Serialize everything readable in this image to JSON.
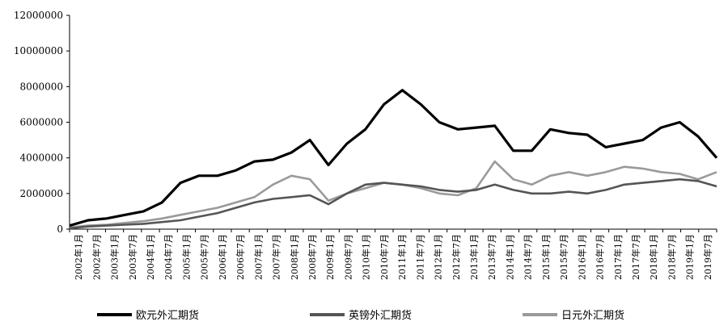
{
  "chart_data": {
    "type": "line",
    "title": "",
    "xlabel": "",
    "ylabel": "",
    "ylim": [
      0,
      12000000
    ],
    "yticks": [
      "0",
      "2000000",
      "4000000",
      "6000000",
      "8000000",
      "10000000",
      "12000000"
    ],
    "x_tick_labels": [
      "2002年1月",
      "2002年7月",
      "2003年1月",
      "2003年7月",
      "2004年1月",
      "2004年7月",
      "2005年1月",
      "2005年7月",
      "2006年1月",
      "2006年7月",
      "2007年1月",
      "2007年7月",
      "2008年1月",
      "2008年7月",
      "2009年1月",
      "2009年7月",
      "2010年1月",
      "2010年7月",
      "2011年1月",
      "2011年7月",
      "2012年1月",
      "2012年7月",
      "2013年1月",
      "2013年7月",
      "2014年1月",
      "2014年7月",
      "2015年1月",
      "2015年7月",
      "2016年1月",
      "2016年7月",
      "2017年1月",
      "2017年7月",
      "2018年1月",
      "2018年7月",
      "2019年1月",
      "2019年7月"
    ],
    "legend_position": "bottom",
    "grid": false,
    "x_anchors": [
      "2002-01",
      "2002-07",
      "2003-01",
      "2003-07",
      "2004-01",
      "2004-07",
      "2005-01",
      "2005-07",
      "2006-01",
      "2006-07",
      "2007-01",
      "2007-07",
      "2008-01",
      "2008-07",
      "2009-01",
      "2009-07",
      "2010-01",
      "2010-07",
      "2011-01",
      "2011-07",
      "2012-01",
      "2012-07",
      "2013-01",
      "2013-07",
      "2014-01",
      "2014-07",
      "2015-01",
      "2015-07",
      "2016-01",
      "2016-07",
      "2017-01",
      "2017-07",
      "2018-01",
      "2018-07",
      "2019-01",
      "2019-07"
    ],
    "series": [
      {
        "name": "欧元外汇期货",
        "color": "#000000",
        "width": 3.2,
        "values": [
          200000,
          500000,
          600000,
          800000,
          1000000,
          1500000,
          2600000,
          3000000,
          3000000,
          3300000,
          3800000,
          3900000,
          4300000,
          5000000,
          3600000,
          4800000,
          5600000,
          7000000,
          7800000,
          7000000,
          6000000,
          5600000,
          5700000,
          5800000,
          4400000,
          4400000,
          5600000,
          5400000,
          5300000,
          4600000,
          4800000,
          5000000,
          5700000,
          6000000,
          5200000,
          4000000
        ]
      },
      {
        "name": "英镑外汇期货",
        "color": "#555555",
        "width": 2.6,
        "values": [
          50000,
          150000,
          200000,
          250000,
          300000,
          400000,
          500000,
          700000,
          900000,
          1200000,
          1500000,
          1700000,
          1800000,
          1900000,
          1400000,
          2000000,
          2500000,
          2600000,
          2500000,
          2400000,
          2200000,
          2100000,
          2200000,
          2500000,
          2200000,
          2000000,
          2000000,
          2100000,
          2000000,
          2200000,
          2500000,
          2600000,
          2700000,
          2800000,
          2700000,
          2400000
        ]
      },
      {
        "name": "日元外汇期货",
        "color": "#9a9a9a",
        "width": 2.6,
        "values": [
          100000,
          200000,
          250000,
          350000,
          450000,
          600000,
          800000,
          1000000,
          1200000,
          1500000,
          1800000,
          2500000,
          3000000,
          2800000,
          1600000,
          2000000,
          2300000,
          2600000,
          2500000,
          2300000,
          2000000,
          1900000,
          2300000,
          3800000,
          2800000,
          2500000,
          3000000,
          3200000,
          3000000,
          3200000,
          3500000,
          3400000,
          3200000,
          3100000,
          2800000,
          3200000
        ]
      }
    ]
  }
}
